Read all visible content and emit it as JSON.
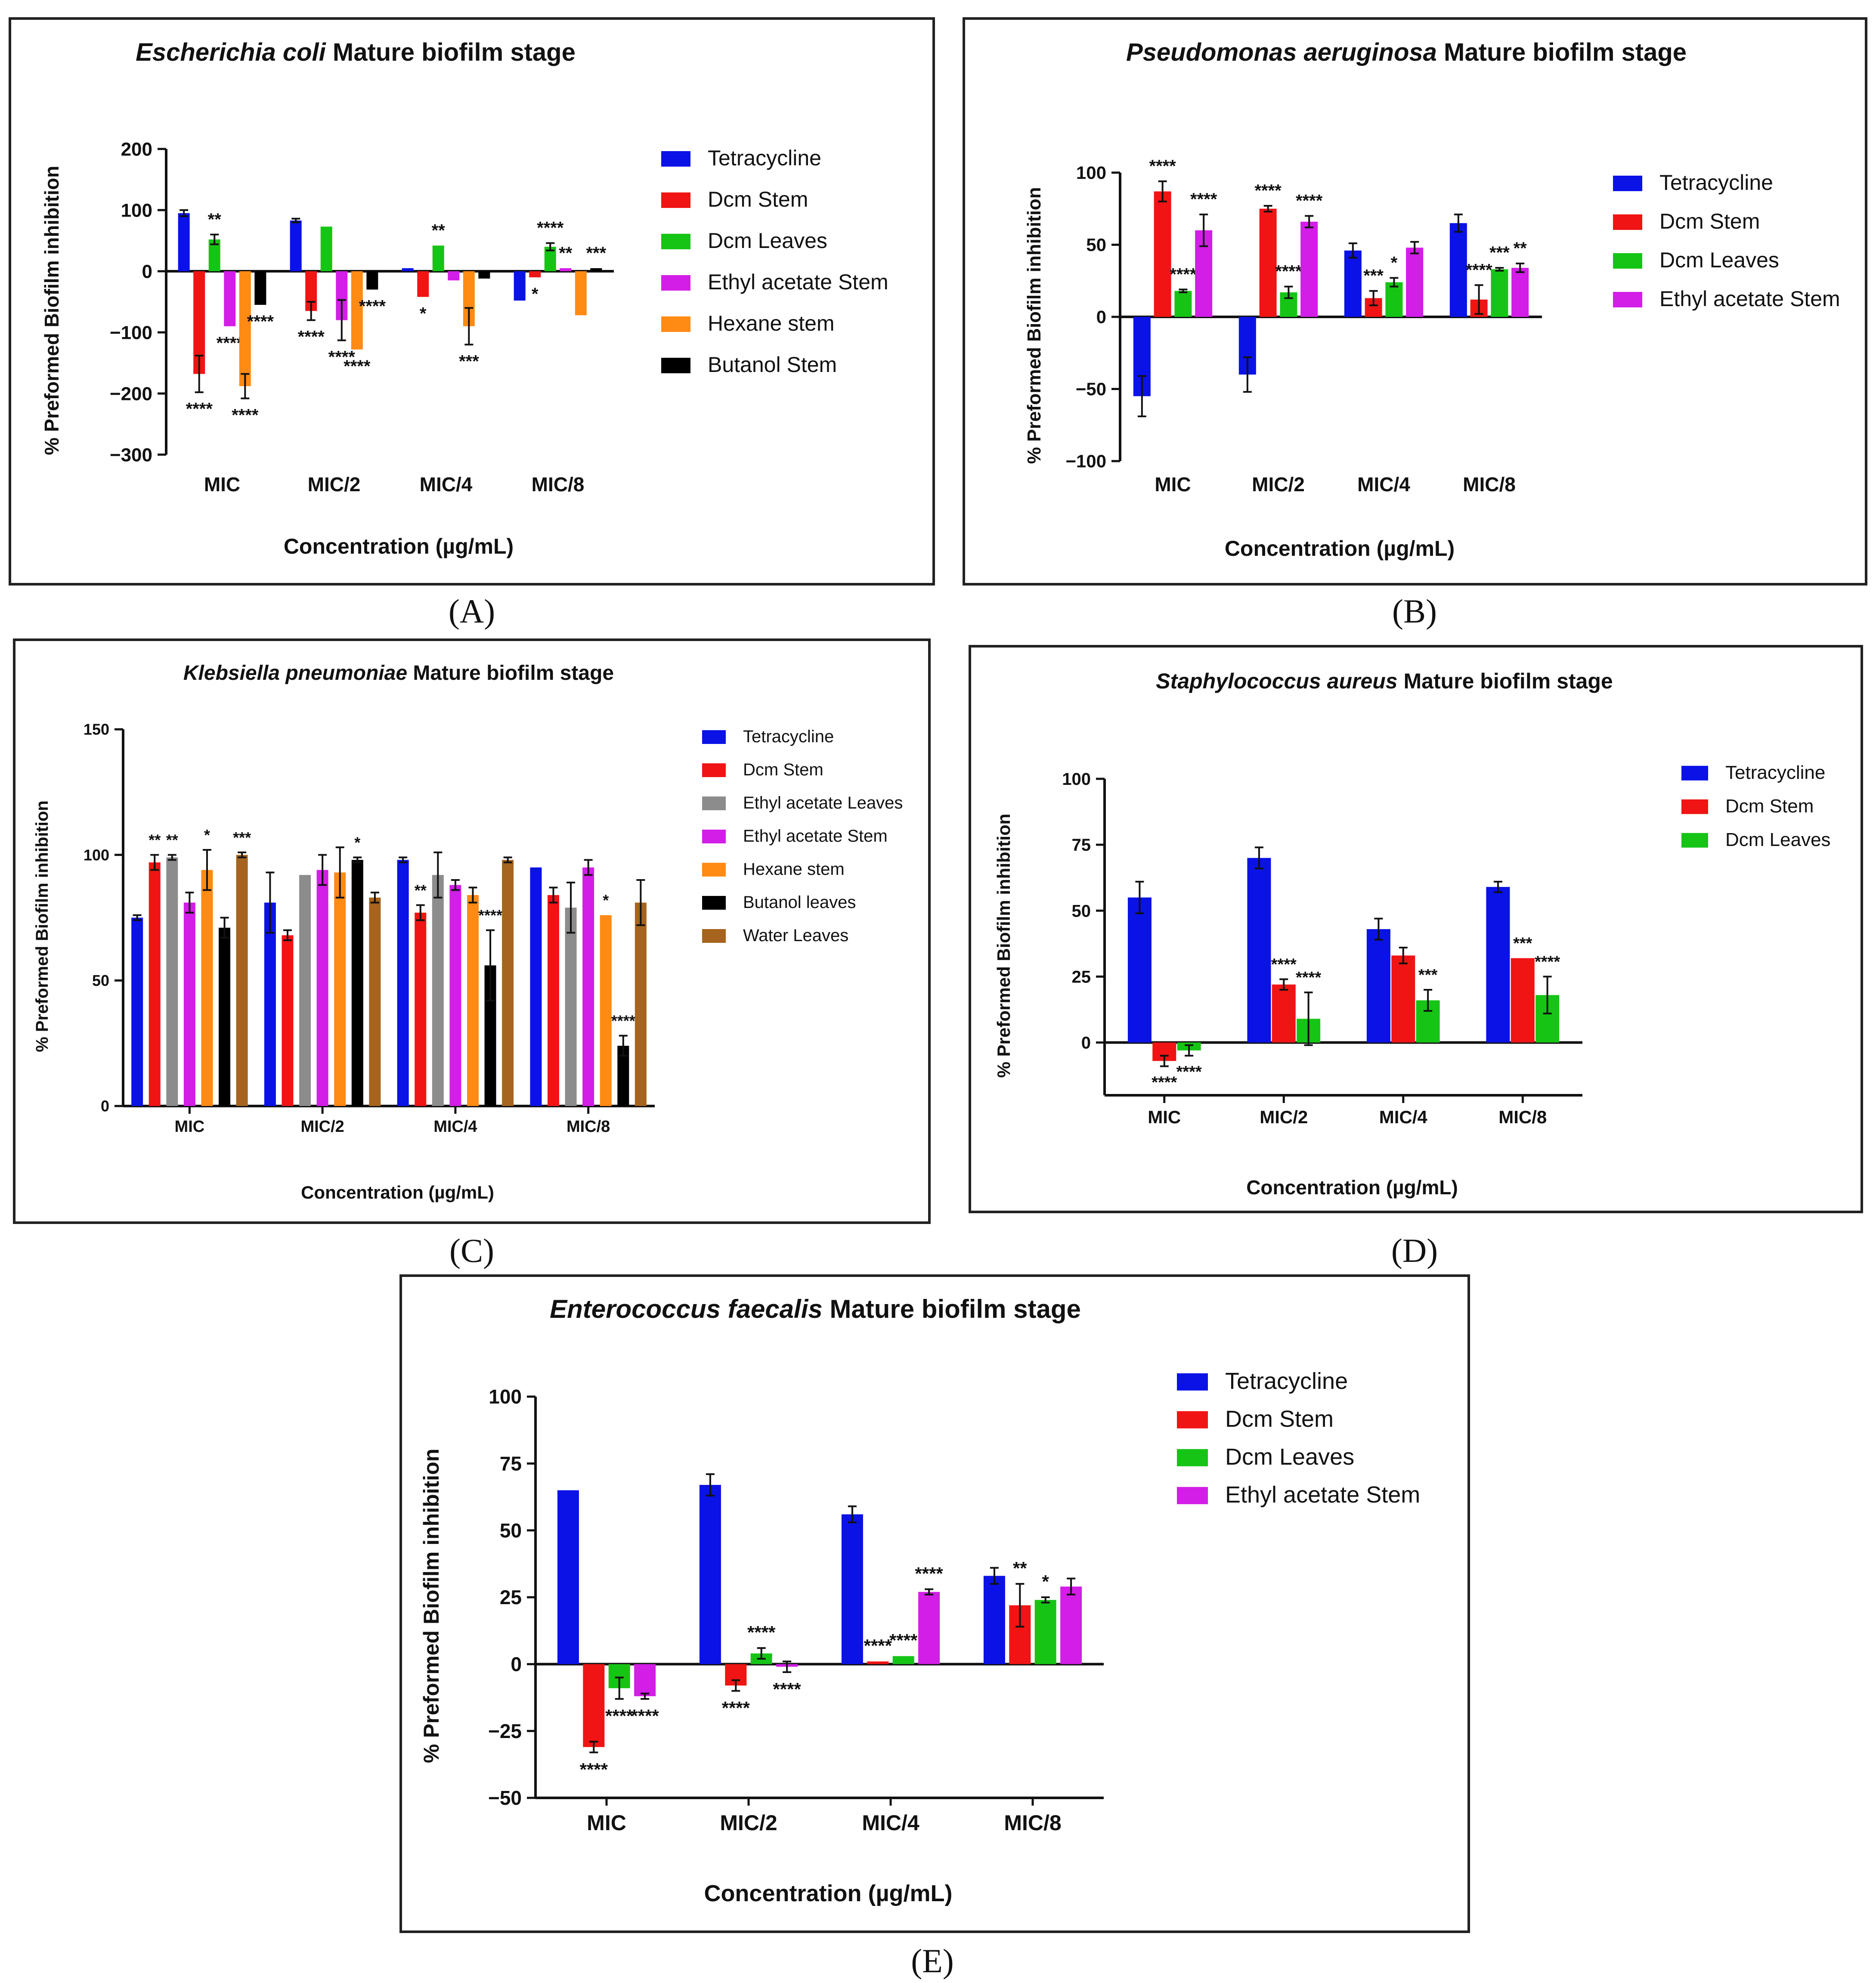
{
  "figure_labels": [
    "(A)",
    "(B)",
    "(C)",
    "(D)",
    "(E)"
  ],
  "chart_data": [
    {
      "panel": "A",
      "type": "bar",
      "title_species": "Escherichia coli",
      "title_rest": " Mature biofilm stage",
      "ylabel": "% Preformed Biofilm  inhibition",
      "xlabel": "Concentration (µg/mL)",
      "categories": [
        "MIC",
        "MIC/2",
        "MIC/4",
        "MIC/8"
      ],
      "ylim": [
        -300,
        200
      ],
      "yticks": [
        200,
        100,
        0,
        -100,
        -200,
        -300
      ],
      "ytick_labels": [
        "200",
        "100",
        "0",
        "−100",
        "−200",
        "−300"
      ],
      "series": [
        {
          "name": "Tetracycline",
          "color": "#0a12e6",
          "values": [
            95,
            83,
            5,
            -48
          ],
          "errors": [
            5,
            3,
            0,
            0
          ],
          "sig": [
            "",
            "",
            "",
            ""
          ]
        },
        {
          "name": "Dcm Stem",
          "color": "#f01414",
          "values": [
            -168,
            -65,
            -42,
            -10
          ],
          "errors": [
            30,
            15,
            0,
            0
          ],
          "sig": [
            "****",
            "****",
            "*",
            "*"
          ]
        },
        {
          "name": "Dcm Leaves",
          "color": "#16c416",
          "values": [
            52,
            73,
            42,
            40
          ],
          "errors": [
            8,
            0,
            0,
            6
          ],
          "sig": [
            "**",
            "",
            "**",
            "****"
          ]
        },
        {
          "name": "Ethyl acetate Stem",
          "color": "#d21ee6",
          "values": [
            -90,
            -80,
            -15,
            5
          ],
          "errors": [
            0,
            33,
            0,
            0
          ],
          "sig": [
            "****",
            "****",
            "",
            "**"
          ]
        },
        {
          "name": "Hexane stem",
          "color": "#ff8a14",
          "values": [
            -188,
            -128,
            -90,
            -72
          ],
          "errors": [
            20,
            0,
            30,
            0
          ],
          "sig": [
            "****",
            "****",
            "***",
            ""
          ]
        },
        {
          "name": "Butanol Stem",
          "color": "#000000",
          "values": [
            -55,
            -30,
            -12,
            5
          ],
          "errors": [
            0,
            0,
            0,
            0
          ],
          "sig": [
            "****",
            "****",
            "",
            "***"
          ]
        }
      ]
    },
    {
      "panel": "B",
      "type": "bar",
      "title_species": "Pseudomonas aeruginosa",
      "title_rest": " Mature biofilm stage",
      "ylabel": "% Preformed Biofilm  inhibition",
      "xlabel": "Concentration (µg/mL)",
      "categories": [
        "MIC",
        "MIC/2",
        "MIC/4",
        "MIC/8"
      ],
      "ylim": [
        -100,
        100
      ],
      "yticks": [
        100,
        50,
        0,
        -50,
        -100
      ],
      "ytick_labels": [
        "100",
        "50",
        "0",
        "−50",
        "−100"
      ],
      "series": [
        {
          "name": "Tetracycline",
          "color": "#0a12e6",
          "values": [
            -55,
            -40,
            46,
            65
          ],
          "errors": [
            14,
            12,
            5,
            6
          ],
          "sig": [
            "",
            "",
            "",
            ""
          ]
        },
        {
          "name": "Dcm Stem",
          "color": "#f01414",
          "values": [
            87,
            75,
            13,
            12
          ],
          "errors": [
            7,
            2,
            5,
            10
          ],
          "sig": [
            "****",
            "****",
            "***",
            "****"
          ]
        },
        {
          "name": "Dcm Leaves",
          "color": "#16c416",
          "values": [
            18,
            17,
            24,
            33
          ],
          "errors": [
            1,
            4,
            3,
            1
          ],
          "sig": [
            "****",
            "****",
            "*",
            "***"
          ]
        },
        {
          "name": "Ethyl acetate Stem",
          "color": "#d21ee6",
          "values": [
            60,
            66,
            48,
            34
          ],
          "errors": [
            11,
            4,
            4,
            3
          ],
          "sig": [
            "****",
            "****",
            "",
            "**"
          ]
        }
      ]
    },
    {
      "panel": "C",
      "type": "bar",
      "title_species": "Klebsiella pneumoniae",
      "title_rest": " Mature biofilm stage",
      "ylabel": "% Preformed Biofilm  inhibition",
      "xlabel": "Concentration (µg/mL)",
      "categories": [
        "MIC",
        "MIC/2",
        "MIC/4",
        "MIC/8"
      ],
      "ylim": [
        0,
        150
      ],
      "yticks": [
        150,
        100,
        50,
        0
      ],
      "ytick_labels": [
        "150",
        "100",
        "50",
        "0"
      ],
      "series": [
        {
          "name": "Tetracycline",
          "color": "#0a12e6",
          "values": [
            75,
            81,
            98,
            95
          ],
          "errors": [
            1,
            12,
            1,
            0
          ],
          "sig": [
            "",
            "",
            "",
            ""
          ]
        },
        {
          "name": "Dcm Stem",
          "color": "#f01414",
          "values": [
            97,
            68,
            77,
            84
          ],
          "errors": [
            3,
            2,
            3,
            3
          ],
          "sig": [
            "**",
            "",
            "**",
            ""
          ]
        },
        {
          "name": "Ethyl acetate Leaves",
          "color": "#8c8c8c",
          "values": [
            99,
            92,
            92,
            79
          ],
          "errors": [
            1,
            0,
            9,
            10
          ],
          "sig": [
            "**",
            "",
            "",
            ""
          ]
        },
        {
          "name": "Ethyl acetate Stem",
          "color": "#d21ee6",
          "values": [
            81,
            94,
            88,
            95
          ],
          "errors": [
            4,
            6,
            2,
            3
          ],
          "sig": [
            "",
            "",
            "",
            ""
          ]
        },
        {
          "name": "Hexane stem",
          "color": "#ff8a14",
          "values": [
            94,
            93,
            84,
            76
          ],
          "errors": [
            8,
            10,
            3,
            0
          ],
          "sig": [
            "*",
            "",
            "",
            "*"
          ]
        },
        {
          "name": "Butanol leaves",
          "color": "#000000",
          "values": [
            71,
            98,
            56,
            24
          ],
          "errors": [
            4,
            1,
            14,
            4
          ],
          "sig": [
            "",
            "*",
            "****",
            "****"
          ]
        },
        {
          "name": "Water Leaves",
          "color": "#a6641e",
          "values": [
            100,
            83,
            98,
            81
          ],
          "errors": [
            1,
            2,
            1,
            9
          ],
          "sig": [
            "***",
            "",
            "",
            ""
          ]
        }
      ]
    },
    {
      "panel": "D",
      "type": "bar",
      "title_species": "Staphylococcus aureus",
      "title_rest": " Mature biofilm stage",
      "ylabel": "% Preformed Biofilm  inhibition",
      "xlabel": "Concentration (µg/mL)",
      "categories": [
        "MIC",
        "MIC/2",
        "MIC/4",
        "MIC/8"
      ],
      "ylim": [
        -20,
        100
      ],
      "yticks": [
        100,
        75,
        50,
        25,
        0
      ],
      "ytick_labels": [
        "100",
        "75",
        "50",
        "25",
        "0"
      ],
      "series": [
        {
          "name": "Tetracycline",
          "color": "#0a12e6",
          "values": [
            55,
            70,
            43,
            59
          ],
          "errors": [
            6,
            4,
            4,
            2
          ],
          "sig": [
            "",
            "",
            "",
            ""
          ]
        },
        {
          "name": "Dcm Stem",
          "color": "#f01414",
          "values": [
            -7,
            22,
            33,
            32
          ],
          "errors": [
            2,
            2,
            3,
            0
          ],
          "sig": [
            "****",
            "****",
            "",
            "***"
          ]
        },
        {
          "name": "Dcm Leaves",
          "color": "#16c416",
          "values": [
            -3,
            9,
            16,
            18
          ],
          "errors": [
            2,
            10,
            4,
            7
          ],
          "sig": [
            "****",
            "****",
            "***",
            "****"
          ]
        }
      ]
    },
    {
      "panel": "E",
      "type": "bar",
      "title_species": "Enterococcus faecalis",
      "title_rest": " Mature biofilm stage",
      "ylabel": "% Preformed Biofilm  inhibition",
      "xlabel": "Concentration (µg/mL)",
      "categories": [
        "MIC",
        "MIC/2",
        "MIC/4",
        "MIC/8"
      ],
      "ylim": [
        -50,
        100
      ],
      "yticks": [
        100,
        75,
        50,
        25,
        0,
        -25,
        -50
      ],
      "ytick_labels": [
        "100",
        "75",
        "50",
        "25",
        "0",
        "−25",
        "−50"
      ],
      "series": [
        {
          "name": "Tetracycline",
          "color": "#0a12e6",
          "values": [
            65,
            67,
            56,
            33
          ],
          "errors": [
            0,
            4,
            3,
            3
          ],
          "sig": [
            "",
            "",
            "",
            ""
          ]
        },
        {
          "name": "Dcm Stem",
          "color": "#f01414",
          "values": [
            -31,
            -8,
            1,
            22
          ],
          "errors": [
            2,
            2,
            0,
            8
          ],
          "sig": [
            "****",
            "****",
            "****",
            "**"
          ]
        },
        {
          "name": "Dcm Leaves",
          "color": "#16c416",
          "values": [
            -9,
            4,
            3,
            24
          ],
          "errors": [
            4,
            2,
            0,
            1
          ],
          "sig": [
            "****",
            "****",
            "****",
            "*"
          ]
        },
        {
          "name": "Ethyl acetate Stem",
          "color": "#d21ee6",
          "values": [
            -12,
            -1,
            27,
            29
          ],
          "errors": [
            1,
            2,
            1,
            3
          ],
          "sig": [
            "****",
            "****",
            "****",
            ""
          ]
        }
      ]
    }
  ]
}
